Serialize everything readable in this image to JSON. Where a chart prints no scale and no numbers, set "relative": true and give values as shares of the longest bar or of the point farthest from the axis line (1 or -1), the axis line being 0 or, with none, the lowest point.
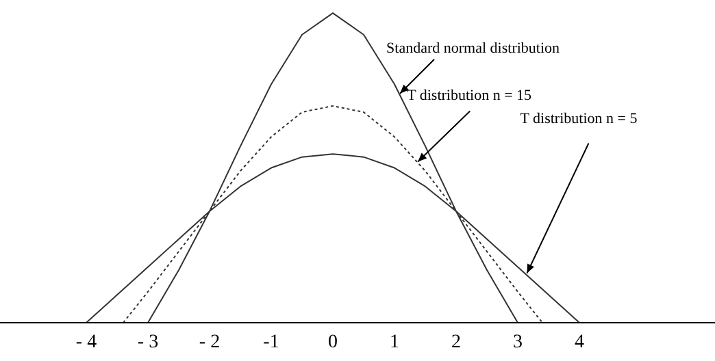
{
  "chart_data": {
    "type": "line",
    "relative": true,
    "xlim": [
      -5.4,
      6.2
    ],
    "xticks": [
      {
        "value": -4,
        "label": "- 4"
      },
      {
        "value": -3,
        "label": "- 3"
      },
      {
        "value": -2,
        "label": "- 2"
      },
      -1,
      0,
      1,
      2,
      3,
      4
    ],
    "tick_labels": "x",
    "grid": false,
    "legend": false,
    "marker": "none",
    "series": [
      {
        "color": "#333333",
        "line_style": "solid",
        "x": [
          -3,
          -2.5,
          -2,
          -1.5,
          -1,
          -0.5,
          0,
          0.5,
          1,
          1.5,
          2,
          2.5,
          3
        ],
        "values": [
          0,
          0.17,
          0.36,
          0.57,
          0.77,
          0.93,
          1,
          0.93,
          0.77,
          0.57,
          0.36,
          0.17,
          0
        ]
      },
      {
        "color": "#333333",
        "line_style": "dotted",
        "x": [
          -3.4,
          -3,
          -2.5,
          -2,
          -1.5,
          -1,
          -0.5,
          0,
          0.5,
          1,
          1.5,
          2,
          2.5,
          3,
          3.4
        ],
        "values": [
          0,
          0.1,
          0.23,
          0.36,
          0.49,
          0.6,
          0.68,
          0.7,
          0.68,
          0.6,
          0.49,
          0.36,
          0.23,
          0.1,
          0
        ]
      },
      {
        "color": "#333333",
        "line_style": "solid",
        "x": [
          -4,
          -3.5,
          -3,
          -2.5,
          -2,
          -1.5,
          -1,
          -0.5,
          0,
          0.5,
          1,
          1.5,
          2,
          2.5,
          3,
          3.5,
          4
        ],
        "values": [
          0,
          0.09,
          0.18,
          0.27,
          0.36,
          0.44,
          0.5,
          0.535,
          0.545,
          0.535,
          0.5,
          0.44,
          0.36,
          0.27,
          0.18,
          0.09,
          0
        ]
      }
    ],
    "annotations": [
      {
        "text": "Standard normal distribution",
        "x": 1.09,
        "y": 0.74
      },
      {
        "text": "T distribution n = 15",
        "x": 1.38,
        "y": 0.52
      },
      {
        "text": "T distribution n = 5",
        "x": 3.15,
        "y": 0.16
      }
    ]
  }
}
